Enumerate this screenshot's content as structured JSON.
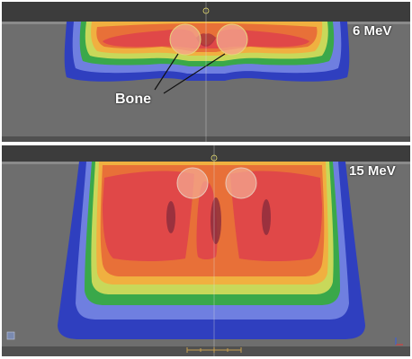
{
  "top_panel": {
    "energy_label": "6 MeV",
    "bone_label": "Bone"
  },
  "bottom_panel": {
    "energy_label": "15 MeV"
  },
  "colors": {
    "background": "#6e6e6e",
    "isodose_outer": "#2f3fbf",
    "isodose_2": "#6f7fe0",
    "isodose_3": "#3aa84a",
    "isodose_4": "#c8d85a",
    "isodose_5": "#f0b040",
    "isodose_6": "#e87038",
    "hot_region": "#e04848",
    "bone": "#f4a890"
  }
}
